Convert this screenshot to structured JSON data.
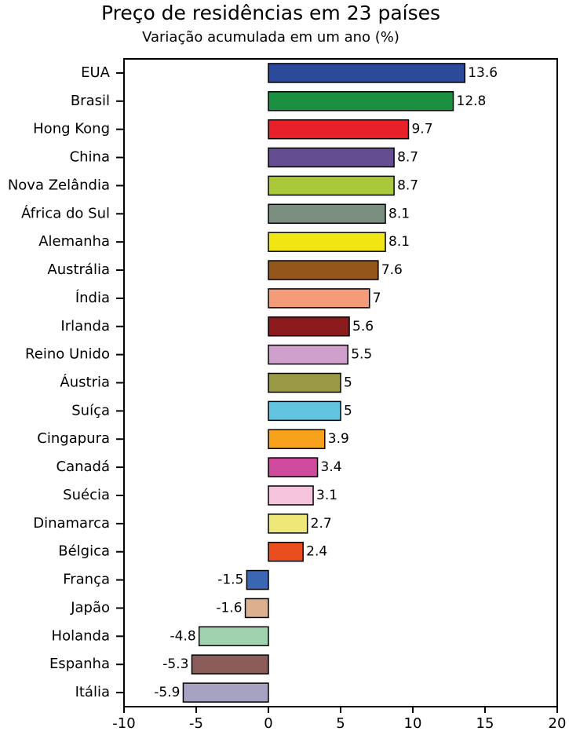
{
  "chart_data": {
    "type": "bar",
    "orientation": "horizontal",
    "title": "Preço de residências em 23 países",
    "subtitle": "Variação acumulada em um ano (%)",
    "categories": [
      "EUA",
      "Brasil",
      "Hong Kong",
      "China",
      "Nova Zelândia",
      "África do Sul",
      "Alemanha",
      "Austrália",
      "Índia",
      "Irlanda",
      "Reino Unido",
      "Áustria",
      "Suíça",
      "Cingapura",
      "Canadá",
      "Suécia",
      "Dinamarca",
      "Bélgica",
      "França",
      "Japão",
      "Holanda",
      "Espanha",
      "Itália"
    ],
    "values": [
      13.6,
      12.8,
      9.7,
      8.7,
      8.7,
      8.1,
      8.1,
      7.6,
      7,
      5.6,
      5.5,
      5,
      5,
      3.9,
      3.4,
      3.1,
      2.7,
      2.4,
      -1.5,
      -1.6,
      -4.8,
      -5.3,
      -5.9
    ],
    "colors": [
      "#2b4a9c",
      "#1a9040",
      "#e8202a",
      "#644d91",
      "#a9c83a",
      "#7a8f80",
      "#f0e614",
      "#94561a",
      "#f49b7a",
      "#8b1a1d",
      "#d0a0cc",
      "#9a9a44",
      "#62c4e0",
      "#f7a11c",
      "#cf4a9c",
      "#f6c3dd",
      "#eee878",
      "#e84e1e",
      "#3b66b4",
      "#dcb08e",
      "#a0d2b0",
      "#8a5c5a",
      "#a6a2c2"
    ],
    "xlim": [
      -10,
      20
    ],
    "xticks": [
      -10,
      -5,
      0,
      5,
      10,
      15,
      20
    ]
  }
}
